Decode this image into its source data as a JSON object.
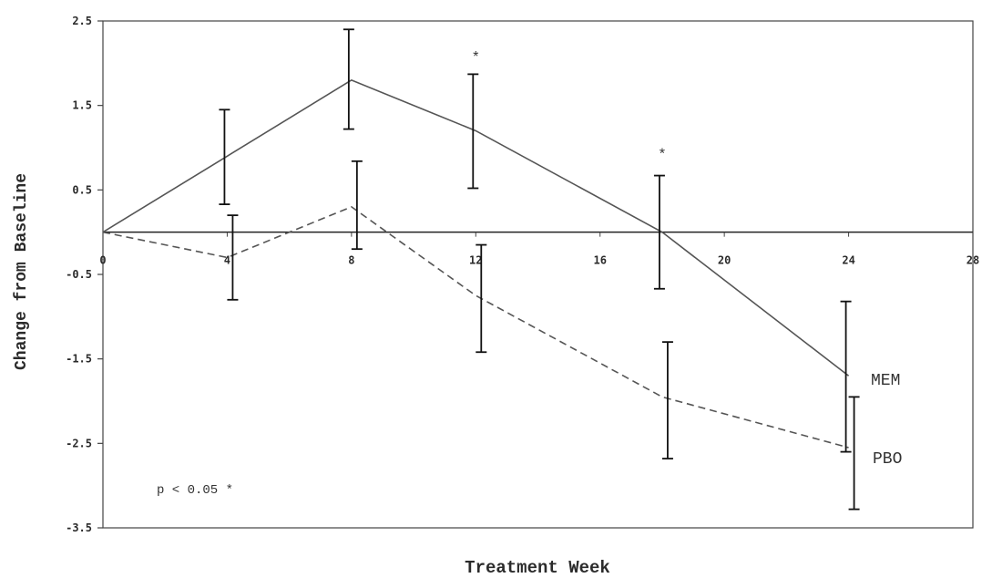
{
  "chart_data": {
    "type": "line",
    "title": "",
    "xlabel": "Treatment Week",
    "ylabel": "Change from Baseline",
    "xlim": [
      0,
      28
    ],
    "ylim": [
      -3.5,
      2.5
    ],
    "x_ticks": [
      "0",
      "4",
      "8",
      "12",
      "16",
      "20",
      "24",
      "28"
    ],
    "y_ticks": [
      "2.5",
      "1.5",
      "0.5",
      "-0.5",
      "-1.5",
      "-2.5",
      "-3.5"
    ],
    "grid": false,
    "series": [
      {
        "name": "MEM",
        "line_style": "solid",
        "x": [
          0,
          4,
          8,
          12,
          18,
          24
        ],
        "y": [
          0,
          0.9,
          1.8,
          1.2,
          0,
          -1.7
        ],
        "error_low": [
          0,
          0.33,
          1.22,
          0.52,
          -0.67,
          -2.6
        ],
        "error_high": [
          0,
          1.45,
          2.4,
          1.87,
          0.67,
          -0.82
        ]
      },
      {
        "name": "PBO",
        "line_style": "dashed",
        "x": [
          0,
          4,
          8,
          12,
          18,
          24
        ],
        "y": [
          0,
          -0.3,
          0.3,
          -0.75,
          -1.95,
          -2.55
        ],
        "error_low": [
          0,
          -0.8,
          -0.2,
          -1.42,
          -2.68,
          -3.28
        ],
        "error_high": [
          0,
          0.2,
          0.84,
          -0.15,
          -1.3,
          -1.95
        ]
      }
    ],
    "significance_markers": [
      {
        "x": 12,
        "y": 2.15,
        "text": "*"
      },
      {
        "x": 18,
        "y": 1.0,
        "text": "*"
      }
    ],
    "annotation": "p < 0.05 *"
  }
}
